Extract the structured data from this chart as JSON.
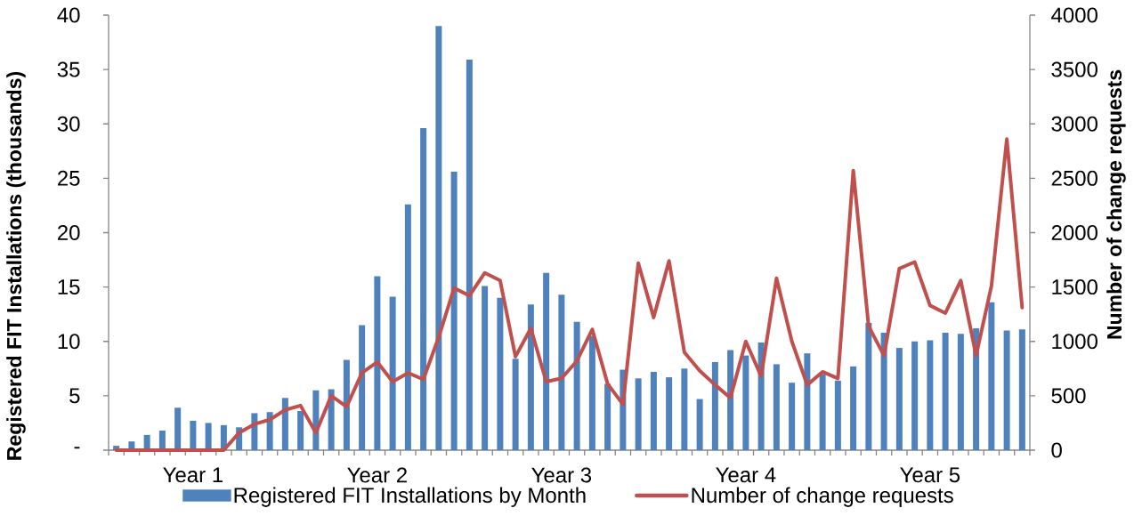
{
  "chart_data": {
    "type": "bar",
    "categories": [
      null,
      null,
      null,
      null,
      null,
      "Year 1",
      null,
      null,
      null,
      null,
      null,
      null,
      null,
      null,
      null,
      null,
      null,
      "Year 2",
      null,
      null,
      null,
      null,
      null,
      null,
      null,
      null,
      null,
      null,
      null,
      "Year 3",
      null,
      null,
      null,
      null,
      null,
      null,
      null,
      null,
      null,
      null,
      null,
      "Year 4",
      null,
      null,
      null,
      null,
      null,
      null,
      null,
      null,
      null,
      null,
      null,
      "Year 5",
      null,
      null,
      null,
      null,
      null,
      null
    ],
    "series": [
      {
        "name": "Registered FIT Installations by Month",
        "color": "#4f81bd",
        "values": [
          0.4,
          0.8,
          1.4,
          1.8,
          3.9,
          2.7,
          2.5,
          2.3,
          2.1,
          3.4,
          3.5,
          4.8,
          3.6,
          5.5,
          5.6,
          8.3,
          11.5,
          16.0,
          14.1,
          22.6,
          29.6,
          39.0,
          25.6,
          35.9,
          15.1,
          14.0,
          8.4,
          13.4,
          16.3,
          14.3,
          11.8,
          10.5,
          6.1,
          7.4,
          6.6,
          7.2,
          6.7,
          7.5,
          4.7,
          8.1,
          9.2,
          8.7,
          9.9,
          7.9,
          6.2,
          8.9,
          7.0,
          6.4,
          7.7,
          11.7,
          10.8,
          9.4,
          10.0,
          10.1,
          10.8,
          10.7,
          11.2,
          13.6,
          11.0,
          11.1
        ]
      },
      {
        "name": "Number of change requests",
        "type": "line",
        "axis": "y2",
        "color": "#c0504d",
        "values": [
          0,
          0,
          0,
          0,
          0,
          0,
          0,
          0,
          160,
          240,
          280,
          370,
          410,
          160,
          500,
          400,
          710,
          810,
          630,
          710,
          650,
          1040,
          1490,
          1420,
          1630,
          1560,
          860,
          1120,
          630,
          660,
          820,
          1110,
          610,
          420,
          1720,
          1220,
          1740,
          900,
          730,
          600,
          480,
          1000,
          680,
          1580,
          1000,
          600,
          720,
          660,
          2570,
          1140,
          870,
          1670,
          1730,
          1330,
          1260,
          1560,
          870,
          1510,
          2860,
          1310
        ]
      }
    ],
    "ylabel": "Registered FIT Installations (thousands)",
    "y2label": "Number of change requests",
    "ylim": [
      0,
      40
    ],
    "yticks": [
      {
        "value": 0,
        "label": "-"
      },
      5,
      10,
      15,
      20,
      25,
      30,
      35,
      40
    ],
    "y2lim": [
      0,
      4000
    ],
    "y2ticks": [
      0,
      500,
      1000,
      1500,
      2000,
      2500,
      3000,
      3500,
      4000
    ],
    "legend": "bottom"
  }
}
